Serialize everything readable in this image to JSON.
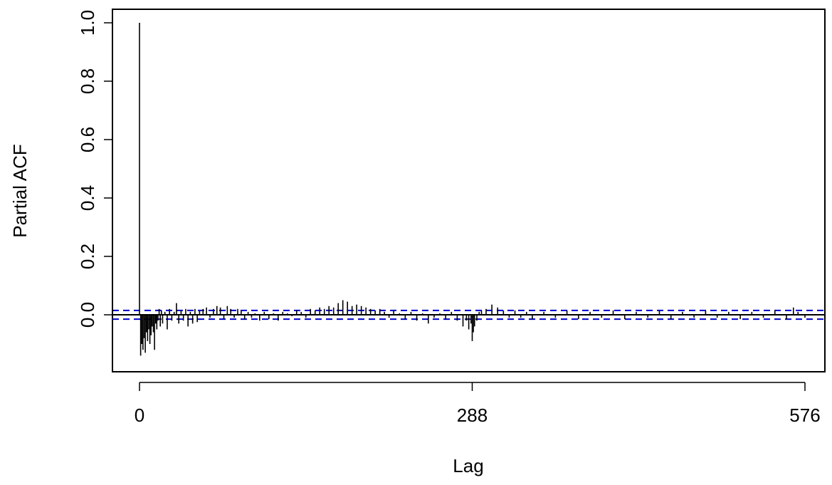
{
  "chart_data": {
    "type": "bar",
    "subtype": "partial-autocorrelation",
    "xlabel": "Lag",
    "ylabel": "Partial ACF",
    "xlim": [
      0,
      576
    ],
    "ylim": [
      -0.16,
      1.0
    ],
    "x_ticks": [
      0,
      288,
      576
    ],
    "x_tick_labels": [
      "0",
      "288",
      "576"
    ],
    "y_ticks": [
      0.0,
      0.2,
      0.4,
      0.6,
      0.8,
      1.0
    ],
    "y_tick_labels": [
      "0.0",
      "0.2",
      "0.4",
      "0.6",
      "0.8",
      "1.0"
    ],
    "confidence_bound": 0.015,
    "colors": {
      "bars": "#000000",
      "confidence_lines": "#0000cc",
      "zero_line": "#000000"
    },
    "series": [
      {
        "lags": [
          0,
          1,
          2,
          3,
          4,
          5,
          6,
          7,
          8,
          9,
          10,
          11,
          12,
          13,
          14,
          15,
          16,
          17,
          18,
          19,
          20,
          22,
          24,
          26,
          28,
          30,
          32,
          34,
          36,
          38,
          40,
          42,
          44,
          46,
          48,
          50,
          52,
          55,
          58,
          61,
          64,
          67,
          70,
          73,
          76,
          79,
          82,
          85,
          88,
          91,
          94,
          97,
          100,
          104,
          108,
          112,
          116,
          120,
          124,
          128,
          132,
          136,
          140,
          144,
          148,
          152,
          156,
          160,
          164,
          168,
          172,
          176,
          180,
          184,
          188,
          192,
          196,
          200,
          204,
          208,
          212,
          216,
          220,
          225,
          230,
          235,
          240,
          245,
          250,
          255,
          260,
          265,
          270,
          275,
          280,
          283,
          285,
          287,
          288,
          289,
          290,
          292,
          294,
          296,
          300,
          305,
          310,
          315,
          320,
          325,
          330,
          335,
          340,
          350,
          360,
          370,
          380,
          390,
          400,
          410,
          420,
          430,
          440,
          450,
          460,
          470,
          480,
          490,
          500,
          510,
          520,
          530,
          540,
          550,
          560,
          566,
          570,
          576
        ],
        "values": [
          1.0,
          -0.14,
          -0.1,
          -0.12,
          -0.08,
          -0.13,
          -0.06,
          -0.09,
          -0.05,
          -0.1,
          -0.07,
          -0.04,
          -0.06,
          -0.12,
          -0.03,
          -0.05,
          -0.02,
          0.02,
          -0.04,
          0.015,
          -0.03,
          0.01,
          -0.05,
          0.02,
          -0.02,
          0.01,
          0.04,
          -0.03,
          0.015,
          -0.02,
          0.02,
          -0.04,
          0.01,
          -0.03,
          0.02,
          -0.025,
          0.015,
          0.02,
          0.025,
          -0.01,
          0.02,
          0.03,
          0.025,
          -0.015,
          0.03,
          0.02,
          -0.01,
          0.02,
          0.015,
          -0.015,
          0.01,
          -0.01,
          0.005,
          -0.02,
          0.01,
          -0.015,
          0.005,
          -0.02,
          0.01,
          0.005,
          -0.005,
          0.015,
          0.01,
          -0.01,
          0.02,
          0.015,
          0.025,
          0.02,
          0.03,
          0.025,
          0.04,
          0.05,
          0.045,
          0.03,
          0.035,
          0.03,
          0.025,
          0.02,
          0.015,
          0.02,
          0.01,
          -0.01,
          0.015,
          0.005,
          -0.015,
          0.01,
          -0.02,
          0.005,
          -0.03,
          -0.01,
          0.005,
          -0.015,
          0.01,
          -0.02,
          -0.04,
          -0.02,
          -0.05,
          -0.03,
          -0.09,
          -0.06,
          -0.04,
          -0.02,
          0.01,
          0.015,
          0.02,
          0.035,
          0.025,
          0.015,
          -0.01,
          0.015,
          -0.01,
          0.01,
          -0.015,
          0.01,
          -0.01,
          0.015,
          -0.015,
          0.01,
          -0.01,
          0.015,
          -0.015,
          0.01,
          -0.01,
          0.015,
          -0.015,
          0.01,
          -0.01,
          0.015,
          -0.01,
          0.01,
          -0.015,
          0.01,
          -0.01,
          0.015,
          -0.015,
          0.025,
          0.01,
          -0.01
        ]
      }
    ]
  }
}
